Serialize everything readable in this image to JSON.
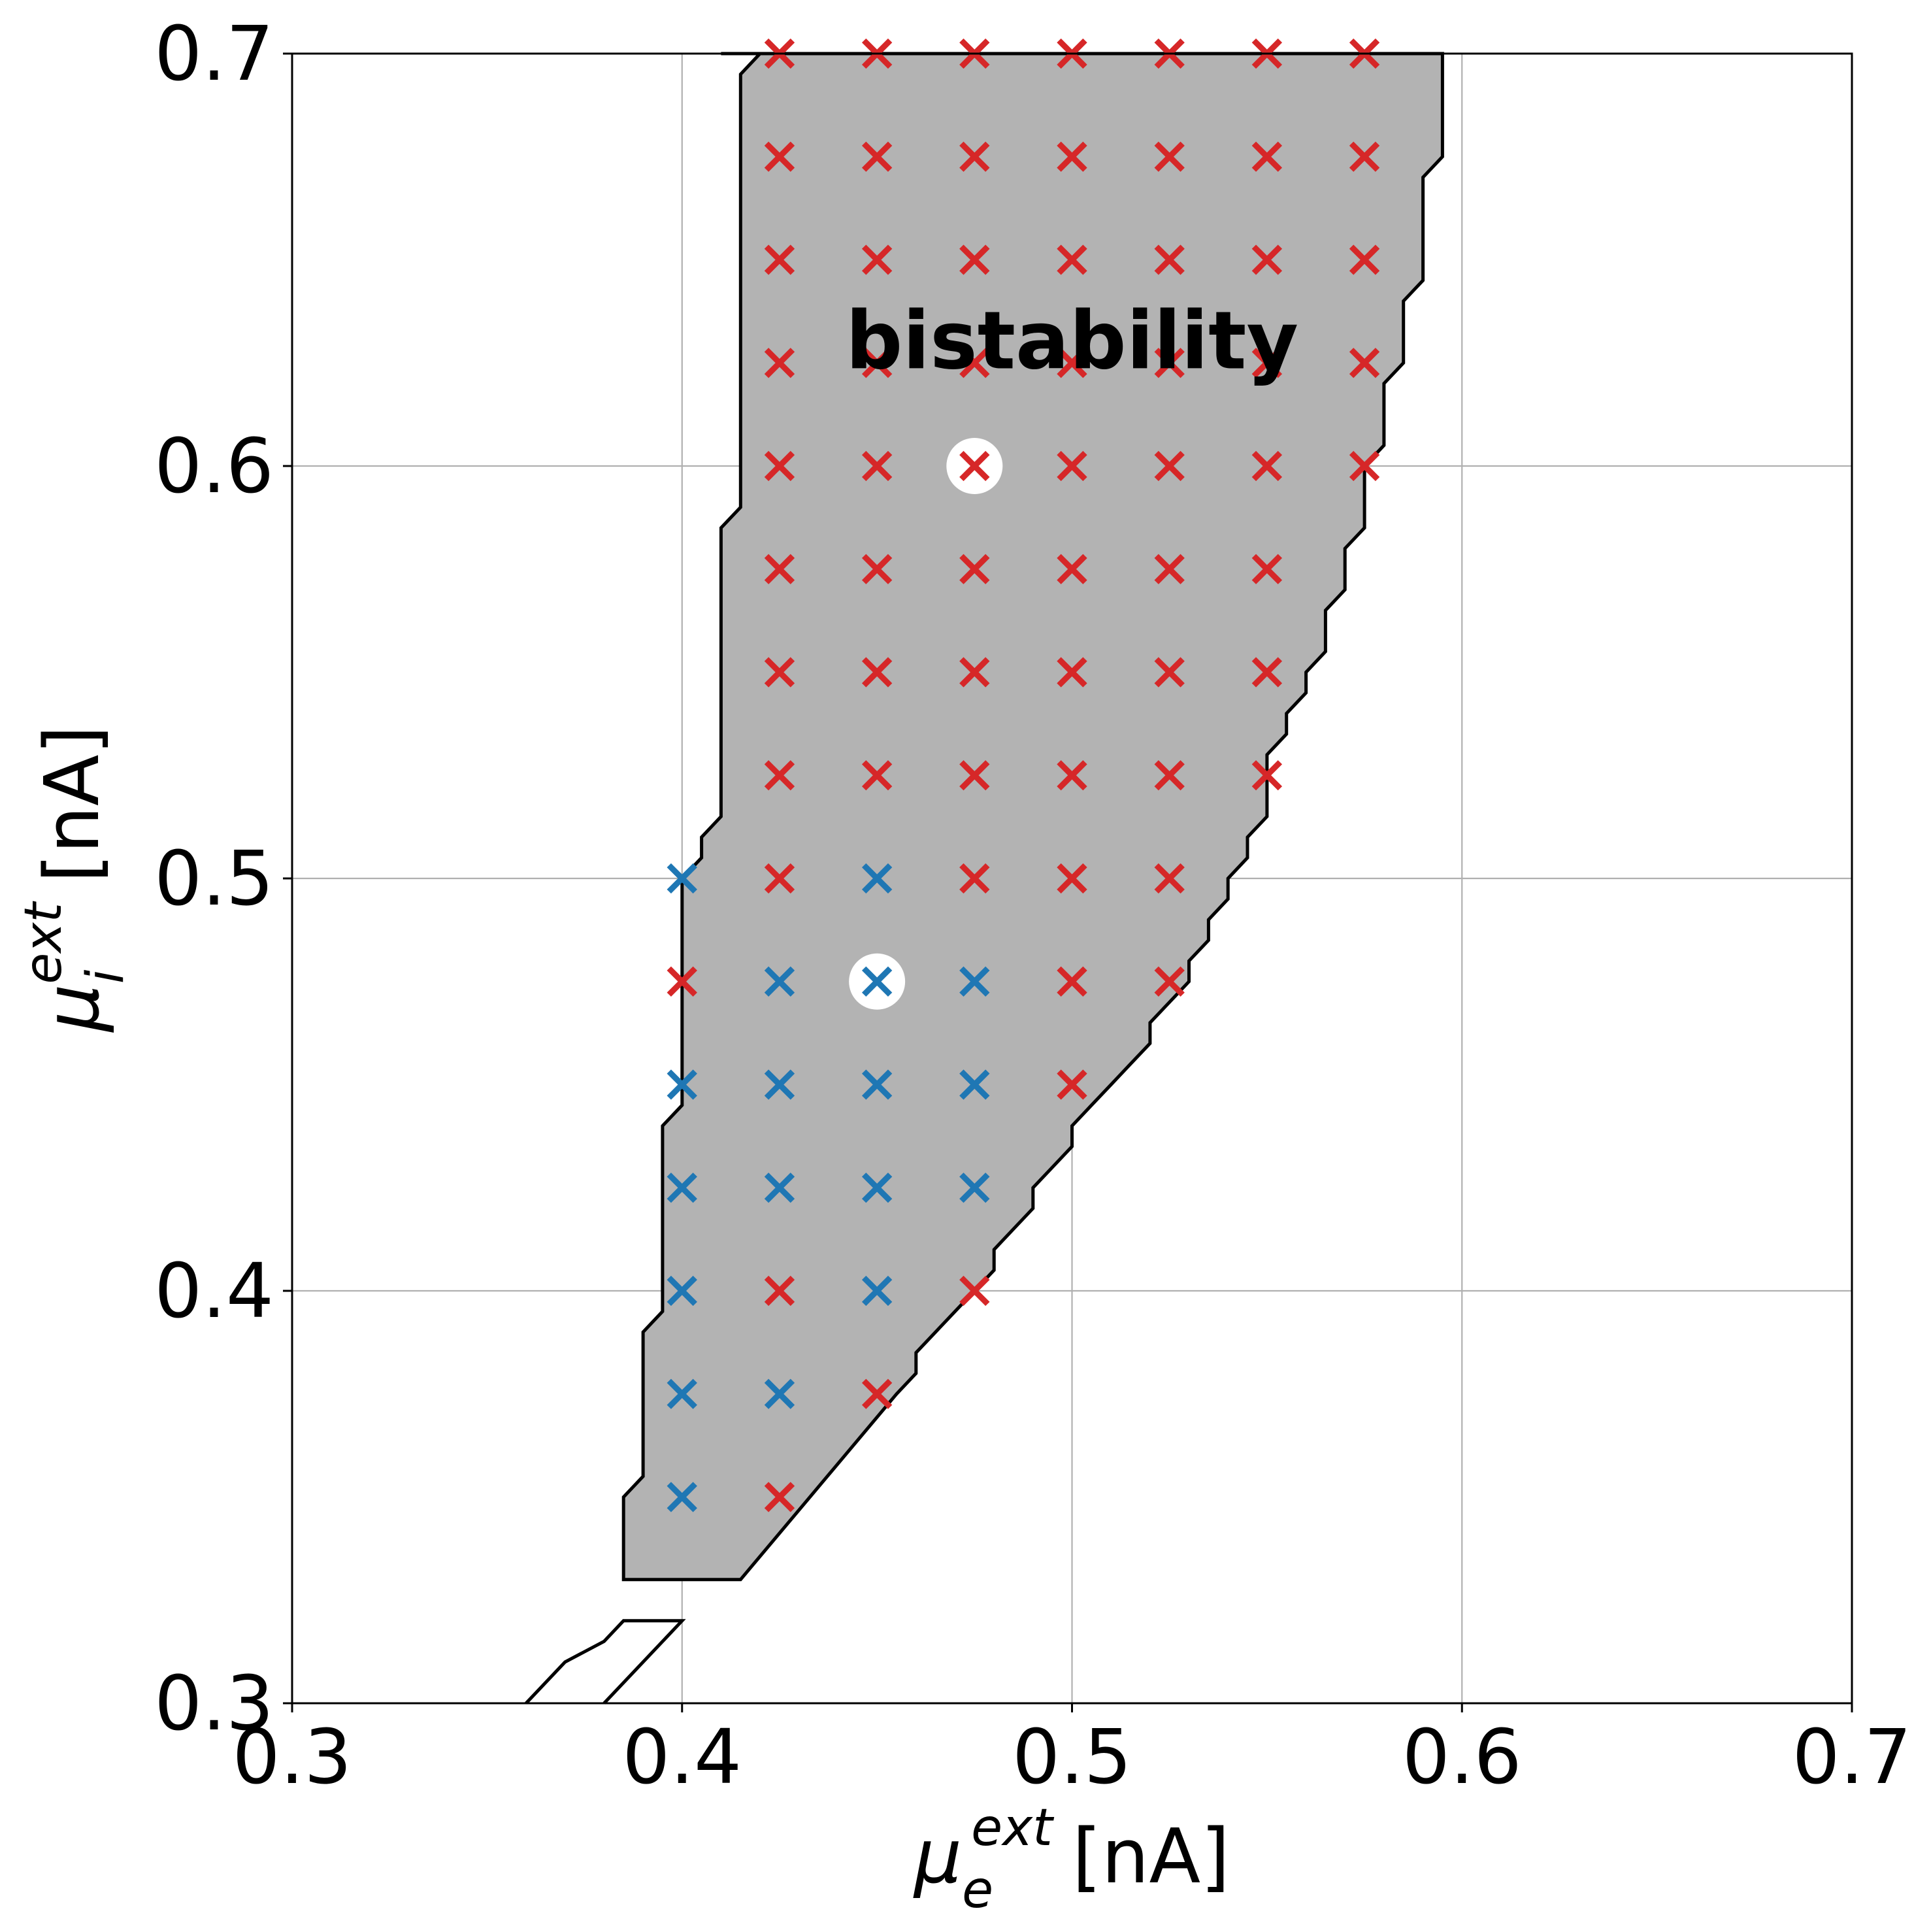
{
  "chart_data": {
    "type": "scatter",
    "title": "",
    "xlabel": {
      "symbol": "μ",
      "sub": "e",
      "sup": "ext",
      "unit": "[nA]"
    },
    "ylabel": {
      "symbol": "μ",
      "sub": "i",
      "sup": "ext",
      "unit": "[nA]"
    },
    "xlim": [
      0.3,
      0.7
    ],
    "ylim": [
      0.3,
      0.7
    ],
    "xticks": [
      0.3,
      0.4,
      0.5,
      0.6,
      0.7
    ],
    "yticks": [
      0.3,
      0.4,
      0.5,
      0.6,
      0.7
    ],
    "xtick_labels": [
      "0.3",
      "0.4",
      "0.5",
      "0.6",
      "0.7"
    ],
    "ytick_labels": [
      "0.3",
      "0.4",
      "0.5",
      "0.6",
      "0.7"
    ],
    "grid": true,
    "annotation": {
      "text": "bistability",
      "x": 0.5,
      "y": 0.63
    },
    "region": {
      "fill": "#b3b3b3",
      "outline": [
        [
          0.41,
          0.7
        ],
        [
          0.415,
          0.7
        ],
        [
          0.595,
          0.7
        ],
        [
          0.595,
          0.675
        ],
        [
          0.59,
          0.67
        ],
        [
          0.59,
          0.645
        ],
        [
          0.585,
          0.64
        ],
        [
          0.585,
          0.625
        ],
        [
          0.58,
          0.62
        ],
        [
          0.58,
          0.605
        ],
        [
          0.575,
          0.6
        ],
        [
          0.575,
          0.585
        ],
        [
          0.57,
          0.58
        ],
        [
          0.57,
          0.57
        ],
        [
          0.565,
          0.565
        ],
        [
          0.565,
          0.555
        ],
        [
          0.56,
          0.55
        ],
        [
          0.56,
          0.545
        ],
        [
          0.555,
          0.54
        ],
        [
          0.555,
          0.535
        ],
        [
          0.55,
          0.53
        ],
        [
          0.55,
          0.515
        ],
        [
          0.545,
          0.51
        ],
        [
          0.545,
          0.505
        ],
        [
          0.54,
          0.5
        ],
        [
          0.54,
          0.495
        ],
        [
          0.535,
          0.49
        ],
        [
          0.535,
          0.485
        ],
        [
          0.53,
          0.48
        ],
        [
          0.53,
          0.475
        ],
        [
          0.525,
          0.47
        ],
        [
          0.52,
          0.465
        ],
        [
          0.52,
          0.46
        ],
        [
          0.515,
          0.455
        ],
        [
          0.51,
          0.45
        ],
        [
          0.505,
          0.445
        ],
        [
          0.5,
          0.44
        ],
        [
          0.5,
          0.435
        ],
        [
          0.495,
          0.43
        ],
        [
          0.49,
          0.425
        ],
        [
          0.49,
          0.42
        ],
        [
          0.485,
          0.415
        ],
        [
          0.48,
          0.41
        ],
        [
          0.48,
          0.405
        ],
        [
          0.475,
          0.4
        ],
        [
          0.47,
          0.395
        ],
        [
          0.465,
          0.39
        ],
        [
          0.46,
          0.385
        ],
        [
          0.46,
          0.38
        ],
        [
          0.455,
          0.375
        ],
        [
          0.415,
          0.33
        ],
        [
          0.385,
          0.33
        ],
        [
          0.385,
          0.35
        ],
        [
          0.39,
          0.355
        ],
        [
          0.39,
          0.39
        ],
        [
          0.395,
          0.395
        ],
        [
          0.395,
          0.44
        ],
        [
          0.4,
          0.445
        ],
        [
          0.4,
          0.5
        ],
        [
          0.405,
          0.505
        ],
        [
          0.405,
          0.51
        ],
        [
          0.41,
          0.515
        ],
        [
          0.41,
          0.585
        ],
        [
          0.415,
          0.59
        ],
        [
          0.415,
          0.695
        ],
        [
          0.42,
          0.7
        ]
      ]
    },
    "small_contour": [
      [
        0.36,
        0.3
      ],
      [
        0.37,
        0.31
      ],
      [
        0.38,
        0.315
      ],
      [
        0.385,
        0.32
      ],
      [
        0.4,
        0.32
      ],
      [
        0.38,
        0.3
      ]
    ],
    "series": [
      {
        "color": "#d62728",
        "marker": "x",
        "points": [
          [
            0.425,
            0.7
          ],
          [
            0.45,
            0.7
          ],
          [
            0.475,
            0.7
          ],
          [
            0.5,
            0.7
          ],
          [
            0.525,
            0.7
          ],
          [
            0.55,
            0.7
          ],
          [
            0.575,
            0.7
          ],
          [
            0.425,
            0.675
          ],
          [
            0.45,
            0.675
          ],
          [
            0.475,
            0.675
          ],
          [
            0.5,
            0.675
          ],
          [
            0.525,
            0.675
          ],
          [
            0.55,
            0.675
          ],
          [
            0.575,
            0.675
          ],
          [
            0.425,
            0.65
          ],
          [
            0.45,
            0.65
          ],
          [
            0.475,
            0.65
          ],
          [
            0.5,
            0.65
          ],
          [
            0.525,
            0.65
          ],
          [
            0.55,
            0.65
          ],
          [
            0.575,
            0.65
          ],
          [
            0.425,
            0.625
          ],
          [
            0.45,
            0.625
          ],
          [
            0.475,
            0.625
          ],
          [
            0.5,
            0.625
          ],
          [
            0.525,
            0.625
          ],
          [
            0.55,
            0.625
          ],
          [
            0.575,
            0.625
          ],
          [
            0.425,
            0.6
          ],
          [
            0.45,
            0.6
          ],
          [
            0.475,
            0.6
          ],
          [
            0.5,
            0.6
          ],
          [
            0.525,
            0.6
          ],
          [
            0.55,
            0.6
          ],
          [
            0.575,
            0.6
          ],
          [
            0.425,
            0.575
          ],
          [
            0.45,
            0.575
          ],
          [
            0.475,
            0.575
          ],
          [
            0.5,
            0.575
          ],
          [
            0.525,
            0.575
          ],
          [
            0.55,
            0.575
          ],
          [
            0.425,
            0.55
          ],
          [
            0.45,
            0.55
          ],
          [
            0.475,
            0.55
          ],
          [
            0.5,
            0.55
          ],
          [
            0.525,
            0.55
          ],
          [
            0.55,
            0.55
          ],
          [
            0.425,
            0.525
          ],
          [
            0.45,
            0.525
          ],
          [
            0.475,
            0.525
          ],
          [
            0.5,
            0.525
          ],
          [
            0.525,
            0.525
          ],
          [
            0.55,
            0.525
          ],
          [
            0.425,
            0.5
          ],
          [
            0.475,
            0.5
          ],
          [
            0.5,
            0.5
          ],
          [
            0.525,
            0.5
          ],
          [
            0.4,
            0.475
          ],
          [
            0.5,
            0.475
          ],
          [
            0.525,
            0.475
          ],
          [
            0.5,
            0.45
          ],
          [
            0.425,
            0.4
          ],
          [
            0.475,
            0.4
          ],
          [
            0.45,
            0.375
          ],
          [
            0.425,
            0.35
          ]
        ]
      },
      {
        "color": "#1f77b4",
        "marker": "x",
        "points": [
          [
            0.4,
            0.5
          ],
          [
            0.45,
            0.5
          ],
          [
            0.425,
            0.475
          ],
          [
            0.45,
            0.475
          ],
          [
            0.475,
            0.475
          ],
          [
            0.4,
            0.45
          ],
          [
            0.425,
            0.45
          ],
          [
            0.45,
            0.45
          ],
          [
            0.475,
            0.45
          ],
          [
            0.4,
            0.425
          ],
          [
            0.425,
            0.425
          ],
          [
            0.45,
            0.425
          ],
          [
            0.475,
            0.425
          ],
          [
            0.4,
            0.4
          ],
          [
            0.45,
            0.4
          ],
          [
            0.4,
            0.375
          ],
          [
            0.425,
            0.375
          ],
          [
            0.4,
            0.35
          ]
        ]
      }
    ],
    "highlighted_points": [
      {
        "x": 0.475,
        "y": 0.6,
        "color": "#d62728"
      },
      {
        "x": 0.45,
        "y": 0.475,
        "color": "#1f77b4"
      }
    ]
  }
}
